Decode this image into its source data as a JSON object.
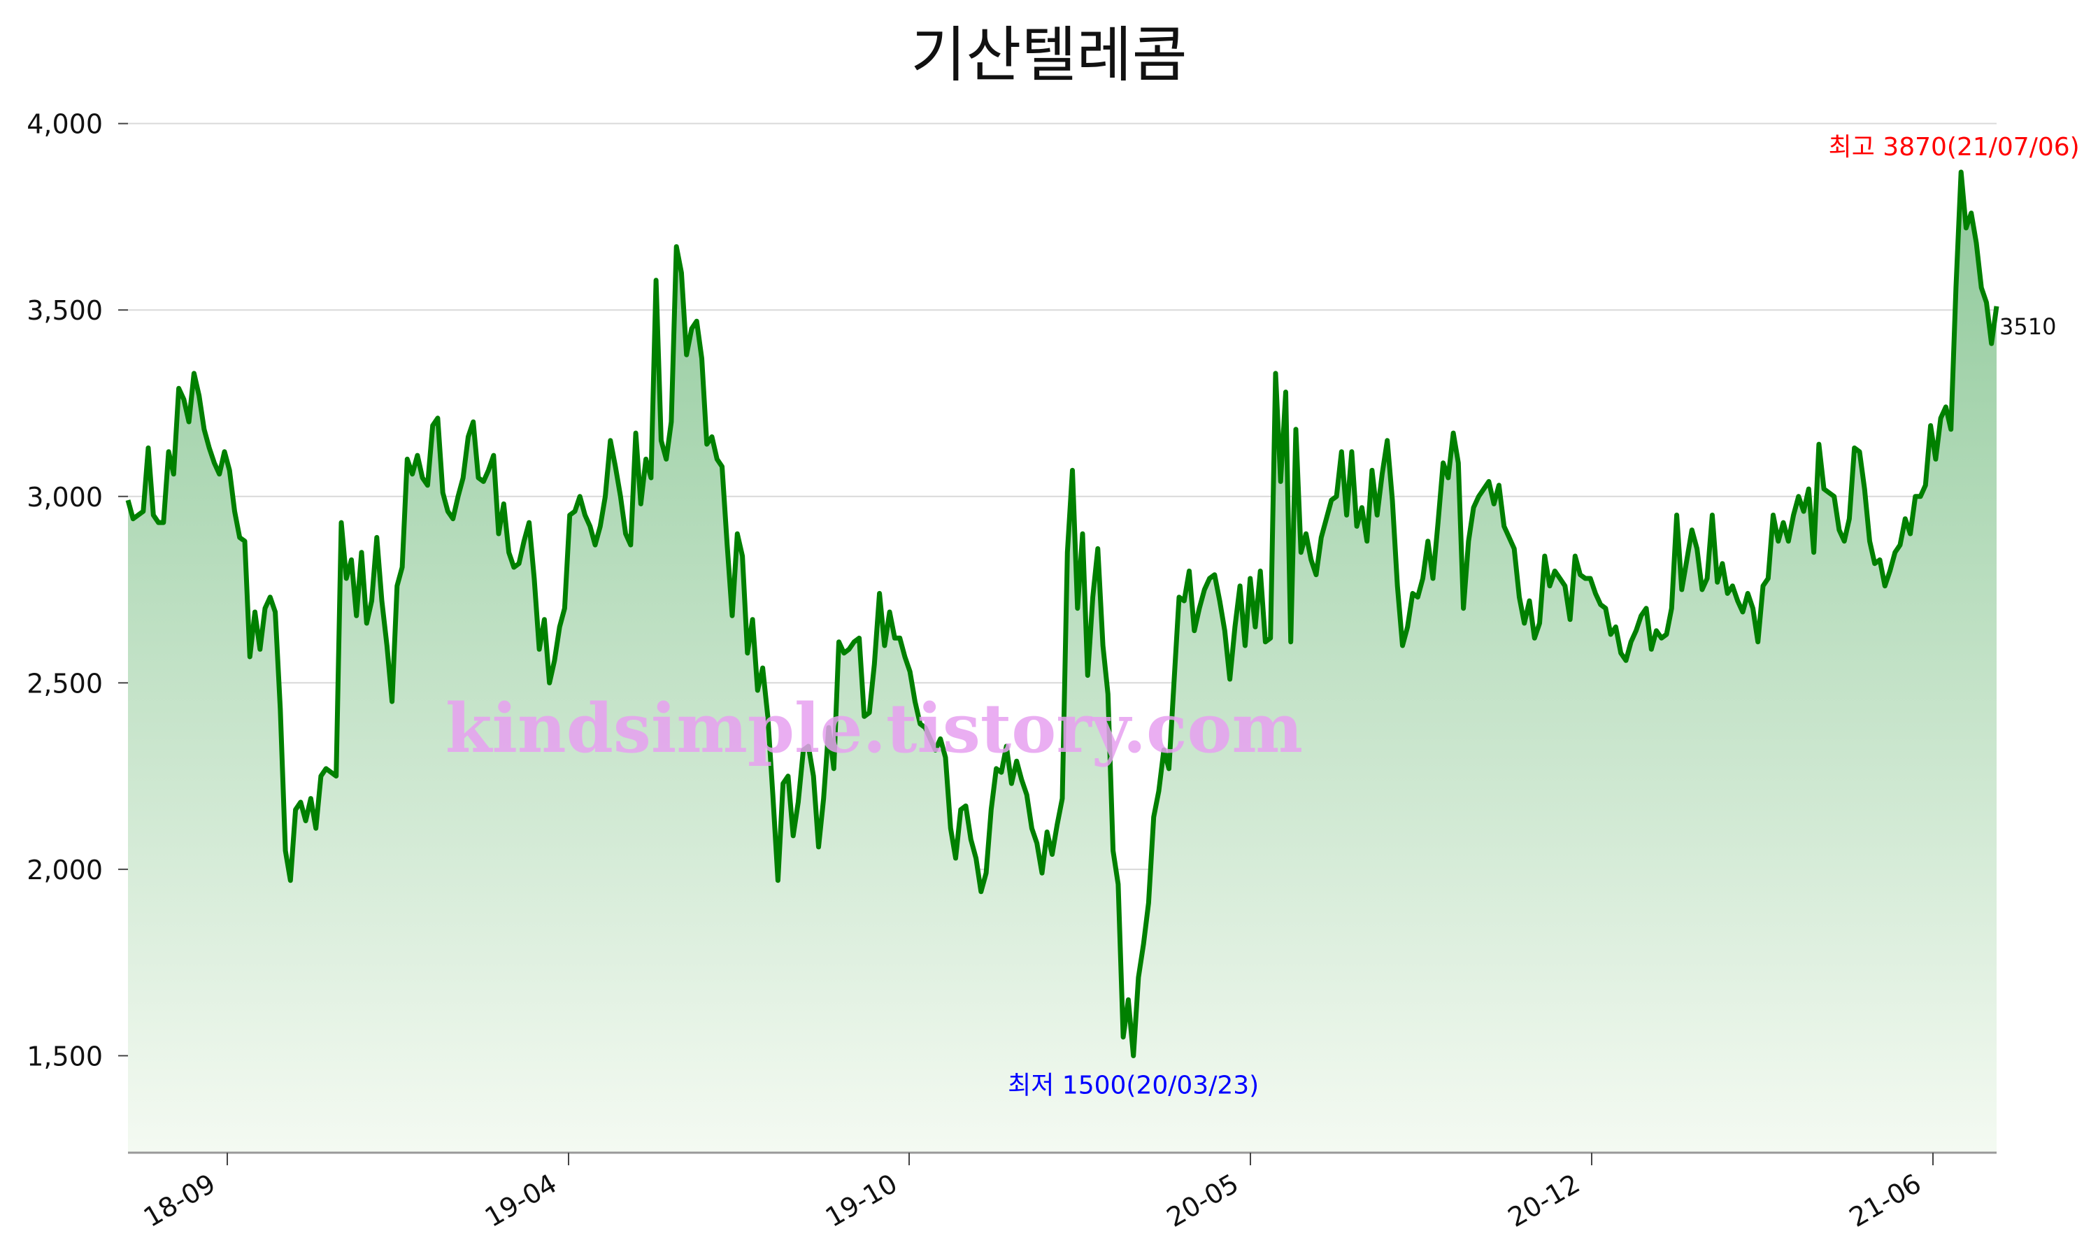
{
  "chart_data": {
    "type": "area",
    "title": "기산텔레콤",
    "xlabel": "",
    "ylabel": "",
    "ylim": [
      1240,
      4050
    ],
    "yticks": [
      1500,
      2000,
      2500,
      3000,
      3500,
      4000
    ],
    "ytick_labels": [
      "1,500",
      "2,000",
      "2,500",
      "3,000",
      "3,500",
      "4,000"
    ],
    "xticks": [
      "18-09",
      "19-04",
      "19-10",
      "20-05",
      "20-12",
      "21-06"
    ],
    "grid": true,
    "legend": "none",
    "series": [
      {
        "values": [
          2990,
          2940,
          2950,
          2960,
          3130,
          2950,
          2930,
          2930,
          3120,
          3060,
          3290,
          3260,
          3200,
          3330,
          3270,
          3180,
          3130,
          3090,
          3060,
          3120,
          3070,
          2960,
          2890,
          2880,
          2570,
          2690,
          2590,
          2700,
          2730,
          2690,
          2430,
          2050,
          1970,
          2160,
          2180,
          2130,
          2190,
          2110,
          2250,
          2270,
          2260,
          2250,
          2930,
          2780,
          2830,
          2680,
          2850,
          2660,
          2720,
          2890,
          2720,
          2600,
          2450,
          2760,
          2810,
          3100,
          3060,
          3110,
          3050,
          3030,
          3190,
          3210,
          3010,
          2960,
          2940,
          3000,
          3050,
          3160,
          3200,
          3050,
          3040,
          3070,
          3110,
          2900,
          2980,
          2850,
          2810,
          2820,
          2880,
          2930,
          2780,
          2590,
          2670,
          2500,
          2560,
          2650,
          2700,
          2950,
          2960,
          3000,
          2950,
          2920,
          2870,
          2920,
          3000,
          3150,
          3080,
          3000,
          2900,
          2870,
          3170,
          2980,
          3100,
          3050,
          3580,
          3150,
          3100,
          3200,
          3670,
          3600,
          3380,
          3450,
          3470,
          3370,
          3140,
          3160,
          3100,
          3080,
          2870,
          2680,
          2900,
          2840,
          2580,
          2670,
          2480,
          2540,
          2410,
          2200,
          1970,
          2230,
          2250,
          2090,
          2180,
          2320,
          2330,
          2250,
          2060,
          2190,
          2380,
          2270,
          2610,
          2580,
          2590,
          2610,
          2620,
          2410,
          2420,
          2550,
          2740,
          2600,
          2690,
          2620,
          2620,
          2570,
          2530,
          2450,
          2390,
          2380,
          2350,
          2320,
          2350,
          2300,
          2110,
          2030,
          2160,
          2170,
          2080,
          2030,
          1940,
          1990,
          2160,
          2270,
          2260,
          2330,
          2230,
          2290,
          2240,
          2200,
          2110,
          2070,
          1990,
          2100,
          2040,
          2120,
          2190,
          2850,
          3070,
          2700,
          2900,
          2520,
          2730,
          2860,
          2600,
          2470,
          2050,
          1960,
          1550,
          1650,
          1500,
          1710,
          1800,
          1910,
          2140,
          2210,
          2320,
          2270,
          2500,
          2730,
          2720,
          2800,
          2640,
          2700,
          2750,
          2780,
          2790,
          2720,
          2640,
          2510,
          2650,
          2760,
          2600,
          2780,
          2650,
          2800,
          2610,
          2620,
          3330,
          3040,
          3280,
          2610,
          3180,
          2850,
          2900,
          2830,
          2790,
          2890,
          2940,
          2990,
          3000,
          3120,
          2950,
          3120,
          2920,
          2970,
          2880,
          3070,
          2950,
          3060,
          3150,
          2990,
          2760,
          2600,
          2650,
          2740,
          2730,
          2780,
          2880,
          2780,
          2930,
          3090,
          3050,
          3170,
          3090,
          2700,
          2880,
          2970,
          3000,
          3020,
          3040,
          2980,
          3030,
          2920,
          2890,
          2860,
          2730,
          2660,
          2720,
          2620,
          2660,
          2840,
          2760,
          2800,
          2780,
          2760,
          2670,
          2840,
          2790,
          2780,
          2780,
          2740,
          2710,
          2700,
          2630,
          2650,
          2580,
          2560,
          2610,
          2640,
          2680,
          2700,
          2590,
          2640,
          2620,
          2630,
          2700,
          2950,
          2750,
          2830,
          2910,
          2860,
          2750,
          2780,
          2950,
          2770,
          2820,
          2740,
          2760,
          2720,
          2690,
          2740,
          2700,
          2610,
          2760,
          2780,
          2950,
          2880,
          2930,
          2880,
          2950,
          3000,
          2960,
          3020,
          2850,
          3140,
          3020,
          3010,
          3000,
          2910,
          2880,
          2940,
          3130,
          3120,
          3020,
          2880,
          2820,
          2830,
          2760,
          2800,
          2850,
          2870,
          2940,
          2900,
          3000,
          3000,
          3030,
          3190,
          3100,
          3210,
          3240,
          3180,
          3560,
          3870,
          3720,
          3760,
          3680,
          3560,
          3520,
          3410,
          3510
        ]
      }
    ],
    "annotations": {
      "max_label": "최고 3870(21/07/06)",
      "min_label": "최저 1500(20/03/23)",
      "last_label": "3510",
      "max_color": "#ff0000",
      "min_color": "#0000ff"
    },
    "colors": {
      "line": "#008000",
      "fill_top": "#8fc99a",
      "fill_bottom": "#f4faf2",
      "grid": "#d9d9d9"
    }
  },
  "watermark": "kindsimple.tistory.com"
}
